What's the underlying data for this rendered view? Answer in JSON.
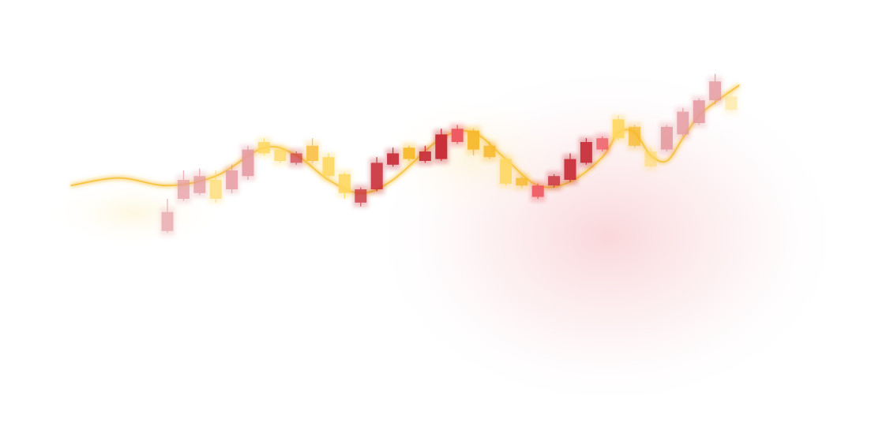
{
  "chart_data": {
    "type": "candlestick",
    "title": "",
    "xlabel": "",
    "ylabel": "",
    "grid": false,
    "legend": "none",
    "ylim": [
      0,
      100
    ],
    "colors": {
      "pink": "#e59aa0",
      "red": "#c9303a",
      "bright_red": "#ee5b63",
      "yellow": "#ffd75e",
      "amber": "#f8b92b",
      "line": "#f7c444",
      "glow_red": "#f6b7bd"
    },
    "candles": [
      {
        "open": 33,
        "close": 43,
        "high": 50,
        "low": 32,
        "color": "pink",
        "fade": 0.7
      },
      {
        "open": 50,
        "close": 60,
        "high": 65,
        "low": 49,
        "color": "pink",
        "fade": 0.75
      },
      {
        "open": 53,
        "close": 62,
        "high": 66,
        "low": 52,
        "color": "pink",
        "fade": 0.8
      },
      {
        "open": 50,
        "close": 60,
        "high": 65,
        "low": 48,
        "color": "yellow",
        "fade": 0.7
      },
      {
        "open": 55,
        "close": 65,
        "high": 68,
        "low": 53,
        "color": "pink",
        "fade": 0.85
      },
      {
        "open": 62,
        "close": 76,
        "high": 78,
        "low": 60,
        "color": "pink",
        "fade": 0.9
      },
      {
        "open": 74,
        "close": 80,
        "high": 82,
        "low": 73,
        "color": "yellow",
        "fade": 0.85
      },
      {
        "open": 70,
        "close": 76,
        "high": 78,
        "low": 69,
        "color": "yellow",
        "fade": 0.8
      },
      {
        "open": 69,
        "close": 74,
        "high": 75,
        "low": 68,
        "color": "red",
        "fade": 0.7
      },
      {
        "open": 70,
        "close": 78,
        "high": 82,
        "low": 69,
        "color": "amber",
        "fade": 0.8
      },
      {
        "open": 62,
        "close": 72,
        "high": 74,
        "low": 60,
        "color": "yellow",
        "fade": 0.9
      },
      {
        "open": 53,
        "close": 63,
        "high": 64,
        "low": 50,
        "color": "yellow",
        "fade": 0.9
      },
      {
        "open": 48,
        "close": 55,
        "high": 56,
        "low": 46,
        "color": "red",
        "fade": 0.8
      },
      {
        "open": 55,
        "close": 69,
        "high": 72,
        "low": 54,
        "color": "red",
        "fade": 0.9
      },
      {
        "open": 68,
        "close": 74,
        "high": 77,
        "low": 67,
        "color": "red",
        "fade": 0.95
      },
      {
        "open": 71,
        "close": 77,
        "high": 78,
        "low": 70,
        "color": "amber",
        "fade": 0.95
      },
      {
        "open": 70,
        "close": 75,
        "high": 78,
        "low": 69,
        "color": "red",
        "fade": 0.95
      },
      {
        "open": 71,
        "close": 84,
        "high": 87,
        "low": 70,
        "color": "red",
        "fade": 1
      },
      {
        "open": 80,
        "close": 87,
        "high": 89,
        "low": 79,
        "color": "bright_red",
        "fade": 1
      },
      {
        "open": 76,
        "close": 86,
        "high": 87,
        "low": 73,
        "color": "amber",
        "fade": 0.95
      },
      {
        "open": 72,
        "close": 78,
        "high": 80,
        "low": 71,
        "color": "amber",
        "fade": 0.9
      },
      {
        "open": 58,
        "close": 71,
        "high": 72,
        "low": 57,
        "color": "yellow",
        "fade": 0.9
      },
      {
        "open": 57,
        "close": 61,
        "high": 62,
        "low": 56,
        "color": "amber",
        "fade": 0.85
      },
      {
        "open": 51,
        "close": 57,
        "high": 58,
        "low": 50,
        "color": "bright_red",
        "fade": 0.95
      },
      {
        "open": 57,
        "close": 62,
        "high": 63,
        "low": 56,
        "color": "red",
        "fade": 0.85
      },
      {
        "open": 60,
        "close": 71,
        "high": 74,
        "low": 59,
        "color": "red",
        "fade": 0.95
      },
      {
        "open": 69,
        "close": 80,
        "high": 82,
        "low": 68,
        "color": "red",
        "fade": 0.95
      },
      {
        "open": 76,
        "close": 82,
        "high": 83,
        "low": 75,
        "color": "bright_red",
        "fade": 0.85
      },
      {
        "open": 82,
        "close": 92,
        "high": 94,
        "low": 81,
        "color": "yellow",
        "fade": 0.9
      },
      {
        "open": 78,
        "close": 88,
        "high": 89,
        "low": 77,
        "color": "amber",
        "fade": 0.8
      },
      {
        "open": 67,
        "close": 75,
        "high": 77,
        "low": 66,
        "color": "yellow",
        "fade": 0.6
      },
      {
        "open": 76,
        "close": 88,
        "high": 89,
        "low": 75,
        "color": "pink",
        "fade": 0.9
      },
      {
        "open": 84,
        "close": 96,
        "high": 98,
        "low": 83,
        "color": "pink",
        "fade": 0.85
      },
      {
        "open": 90,
        "close": 102,
        "high": 103,
        "low": 89,
        "color": "pink",
        "fade": 0.9
      },
      {
        "open": 102,
        "close": 112,
        "high": 116,
        "low": 100,
        "color": "pink",
        "fade": 0.85
      },
      {
        "open": 97,
        "close": 104,
        "high": 106,
        "low": 96,
        "color": "yellow",
        "fade": 0.45
      }
    ],
    "trend_line": [
      [
        -6,
        57
      ],
      [
        -3,
        61
      ],
      [
        0,
        57
      ],
      [
        3,
        62
      ],
      [
        6,
        77
      ],
      [
        8,
        73
      ],
      [
        10,
        60
      ],
      [
        12,
        53
      ],
      [
        14,
        60
      ],
      [
        17,
        82
      ],
      [
        19,
        85
      ],
      [
        21,
        71
      ],
      [
        23,
        57
      ],
      [
        25,
        59
      ],
      [
        27,
        72
      ],
      [
        28,
        85
      ],
      [
        29,
        85
      ],
      [
        30,
        73
      ],
      [
        31,
        70
      ],
      [
        32,
        82
      ],
      [
        33,
        94
      ],
      [
        34,
        101
      ],
      [
        35.5,
        110
      ]
    ]
  }
}
